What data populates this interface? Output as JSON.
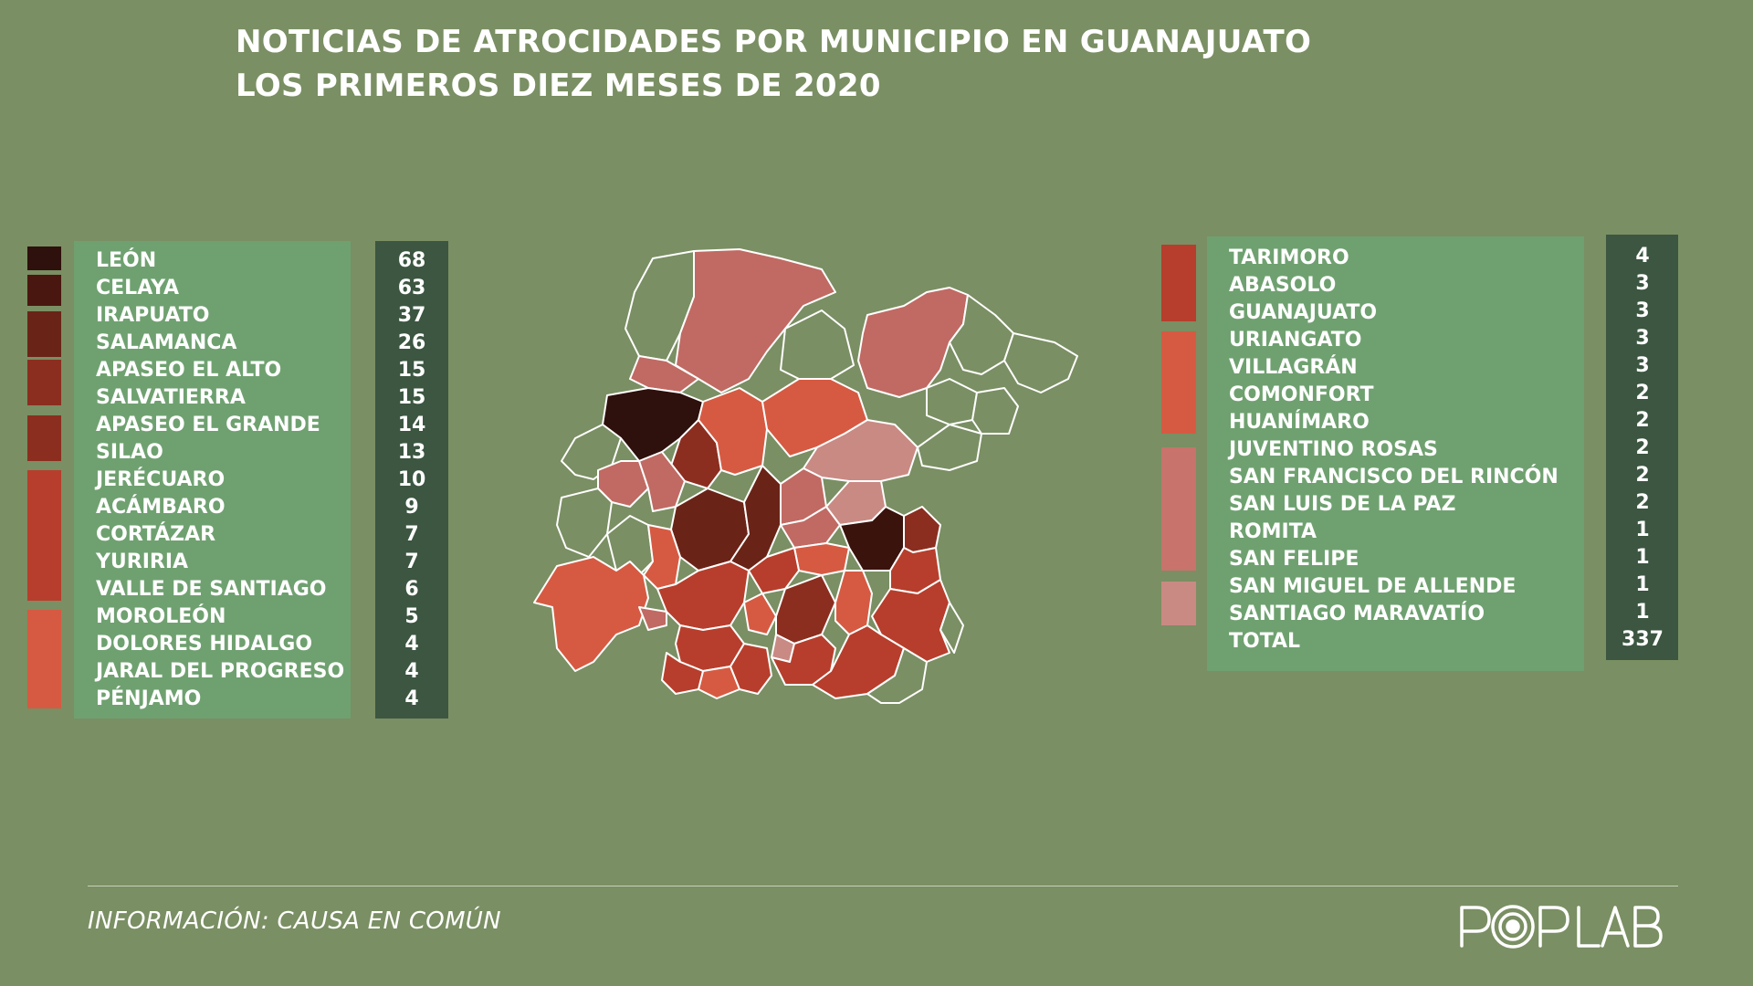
{
  "title": {
    "line1": "NOTICIAS DE ATROCIDADES POR MUNICIPIO EN GUANAJUATO",
    "line2": "LOS PRIMEROS DIEZ MESES DE 2020"
  },
  "colors": {
    "background": "#7a8f63",
    "names_panel": "#6fa170",
    "values_panel": "#3c5641",
    "scale": [
      "#2e100c",
      "#4a1710",
      "#6a2417",
      "#8b2e20",
      "#b73e2c",
      "#d65a42",
      "#c8736c",
      "#c98a84"
    ]
  },
  "legend_left": {
    "rows": [
      {
        "name": "LEÓN",
        "value": "68"
      },
      {
        "name": "CELAYA",
        "value": "63"
      },
      {
        "name": "IRAPUATO",
        "value": "37"
      },
      {
        "name": "SALAMANCA",
        "value": "26"
      },
      {
        "name": "APASEO EL ALTO",
        "value": "15"
      },
      {
        "name": "SALVATIERRA",
        "value": "15"
      },
      {
        "name": "APASEO EL GRANDE",
        "value": "14"
      },
      {
        "name": "SILAO",
        "value": "13"
      },
      {
        "name": "JERÉCUARO",
        "value": "10"
      },
      {
        "name": "ACÁMBARO",
        "value": "9"
      },
      {
        "name": "CORTÁZAR",
        "value": "7"
      },
      {
        "name": "YURIRIA",
        "value": "7"
      },
      {
        "name": "VALLE DE SANTIAGO",
        "value": "6"
      },
      {
        "name": "MOROLEÓN",
        "value": "5"
      },
      {
        "name": "DOLORES HIDALGO",
        "value": "4"
      },
      {
        "name": "JARAL DEL PROGRESO",
        "value": "4"
      },
      {
        "name": "PÉNJAMO",
        "value": "4"
      }
    ]
  },
  "legend_right": {
    "rows": [
      {
        "name": "TARIMORO",
        "value": "4"
      },
      {
        "name": "ABASOLO",
        "value": "3"
      },
      {
        "name": "GUANAJUATO",
        "value": "3"
      },
      {
        "name": "URIANGATO",
        "value": "3"
      },
      {
        "name": "VILLAGRÁN",
        "value": "3"
      },
      {
        "name": "COMONFORT",
        "value": "2"
      },
      {
        "name": "HUANÍMARO",
        "value": "2"
      },
      {
        "name": "JUVENTINO ROSAS",
        "value": "2"
      },
      {
        "name": "SAN FRANCISCO DEL RINCÓN",
        "value": "2"
      },
      {
        "name": "SAN LUIS DE LA PAZ",
        "value": "2"
      },
      {
        "name": "ROMITA",
        "value": "1"
      },
      {
        "name": "SAN FELIPE",
        "value": "1"
      },
      {
        "name": "SAN MIGUEL DE ALLENDE",
        "value": "1"
      },
      {
        "name": "SANTIAGO MARAVATÍO",
        "value": "1"
      },
      {
        "name": "TOTAL",
        "value": "337"
      }
    ]
  },
  "map": {
    "icon": "guanajuato-municipalities-map"
  },
  "footer": {
    "source": "INFORMACIÓN: CAUSA EN COMÚN",
    "logo": "POP LAB"
  }
}
